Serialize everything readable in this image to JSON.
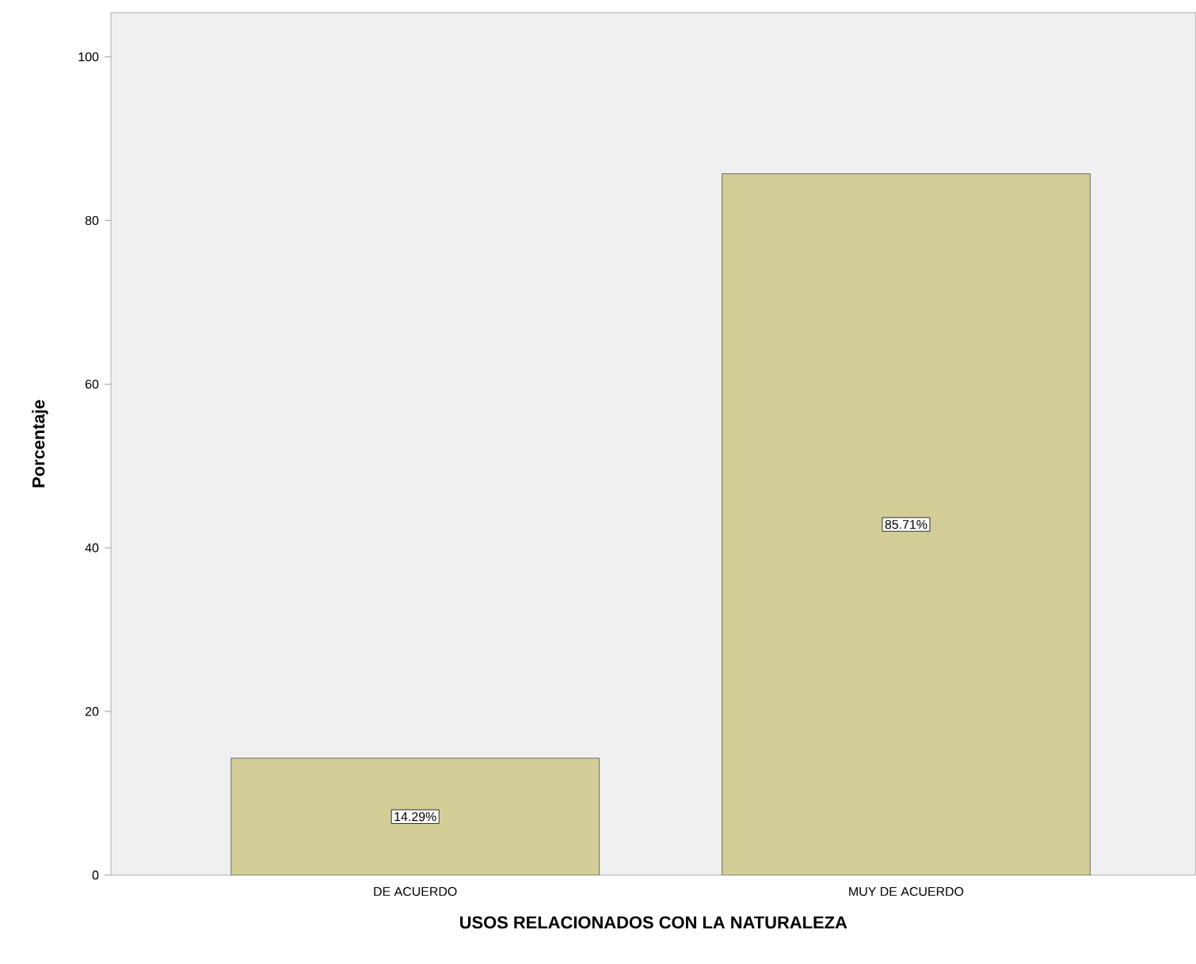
{
  "chart_data": {
    "type": "bar",
    "xlabel": "USOS RELACIONADOS CON LA NATURALEZA",
    "ylabel": "Porcentaje",
    "categories": [
      "DE ACUERDO",
      "MUY DE ACUERDO"
    ],
    "values": [
      14.29,
      85.71
    ],
    "value_labels": [
      "14.29%",
      "85.71%"
    ],
    "color": "#d3ce98",
    "ylim": [
      0,
      105.4
    ],
    "yticks": [
      0,
      20,
      40,
      60,
      80,
      100
    ],
    "grid": false
  }
}
